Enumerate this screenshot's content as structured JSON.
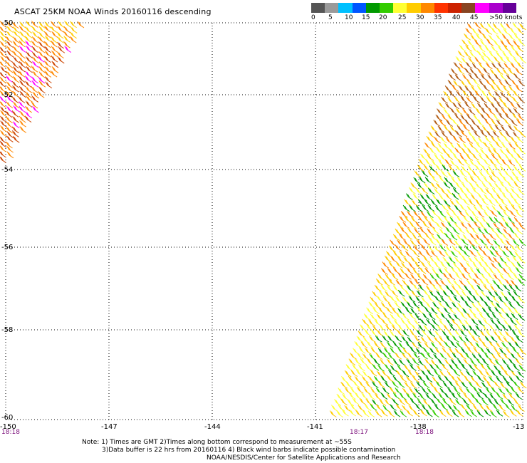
{
  "title": "ASCAT 25KM NOAA Winds 20160116 descending",
  "legend": {
    "colors": [
      "#555555",
      "#9a9a9a",
      "#00c0ff",
      "#0055ff",
      "#009900",
      "#33cc00",
      "#ffff33",
      "#ffcc00",
      "#ff8800",
      "#ff3300",
      "#cc2200",
      "#884422",
      "#ff00ff",
      "#aa00cc",
      "#660099"
    ],
    "labels": [
      "0",
      "5",
      "10",
      "15",
      "20",
      "25",
      "30",
      "35",
      "40",
      "45",
      ">50 knots"
    ]
  },
  "axes": {
    "lat_labels": [
      "-50",
      "-52",
      "-54",
      "-56",
      "-58",
      "-60"
    ],
    "lon_labels": [
      "-150",
      "-147",
      "-144",
      "-141",
      "-138",
      "-13"
    ]
  },
  "time_labels": [
    "18:18",
    "18:17",
    "18:18"
  ],
  "notes": {
    "line1": "Note: 1) Times are GMT 2)Times along bottom correspond to measurement at ~55S",
    "line2": "3)Data buffer is 22 hrs from 20160116 4) Black wind barbs indicate possible contamination",
    "line3": "NOAA/NESDIS/Center for Satellite Applications and Research"
  }
}
